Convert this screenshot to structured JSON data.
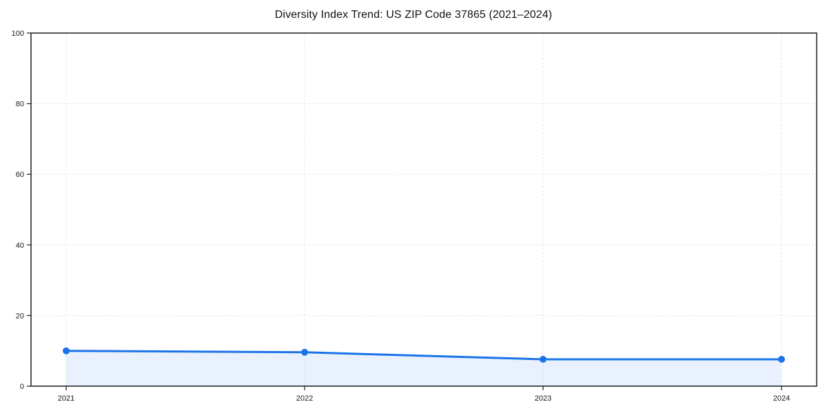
{
  "chart": {
    "title": "Diversity Index Trend: US ZIP Code 37865 (2021–2024)"
  },
  "chart_data": {
    "type": "line",
    "title": "Diversity Index Trend: US ZIP Code 37865 (2021–2024)",
    "categories": [
      "2021",
      "2022",
      "2023",
      "2024"
    ],
    "series": [
      {
        "name": "Diversity Index",
        "values": [
          10.0,
          9.6,
          7.6,
          7.6
        ]
      }
    ],
    "xlabel": "",
    "ylabel": "",
    "ylim": [
      0,
      100
    ],
    "yticks": [
      0,
      20,
      40,
      60,
      80,
      100
    ],
    "grid": "dashed-both-axes",
    "legend": "none",
    "marker": "circle",
    "area_fill": true,
    "colors": {
      "line": "#1a73e8",
      "fill": "#1a73e8",
      "fill_opacity": 0.1,
      "grid": "#e3e3e3",
      "axis": "#1a1a1a",
      "tick_text": "#1a1a1a",
      "background": "#ffffff"
    }
  }
}
